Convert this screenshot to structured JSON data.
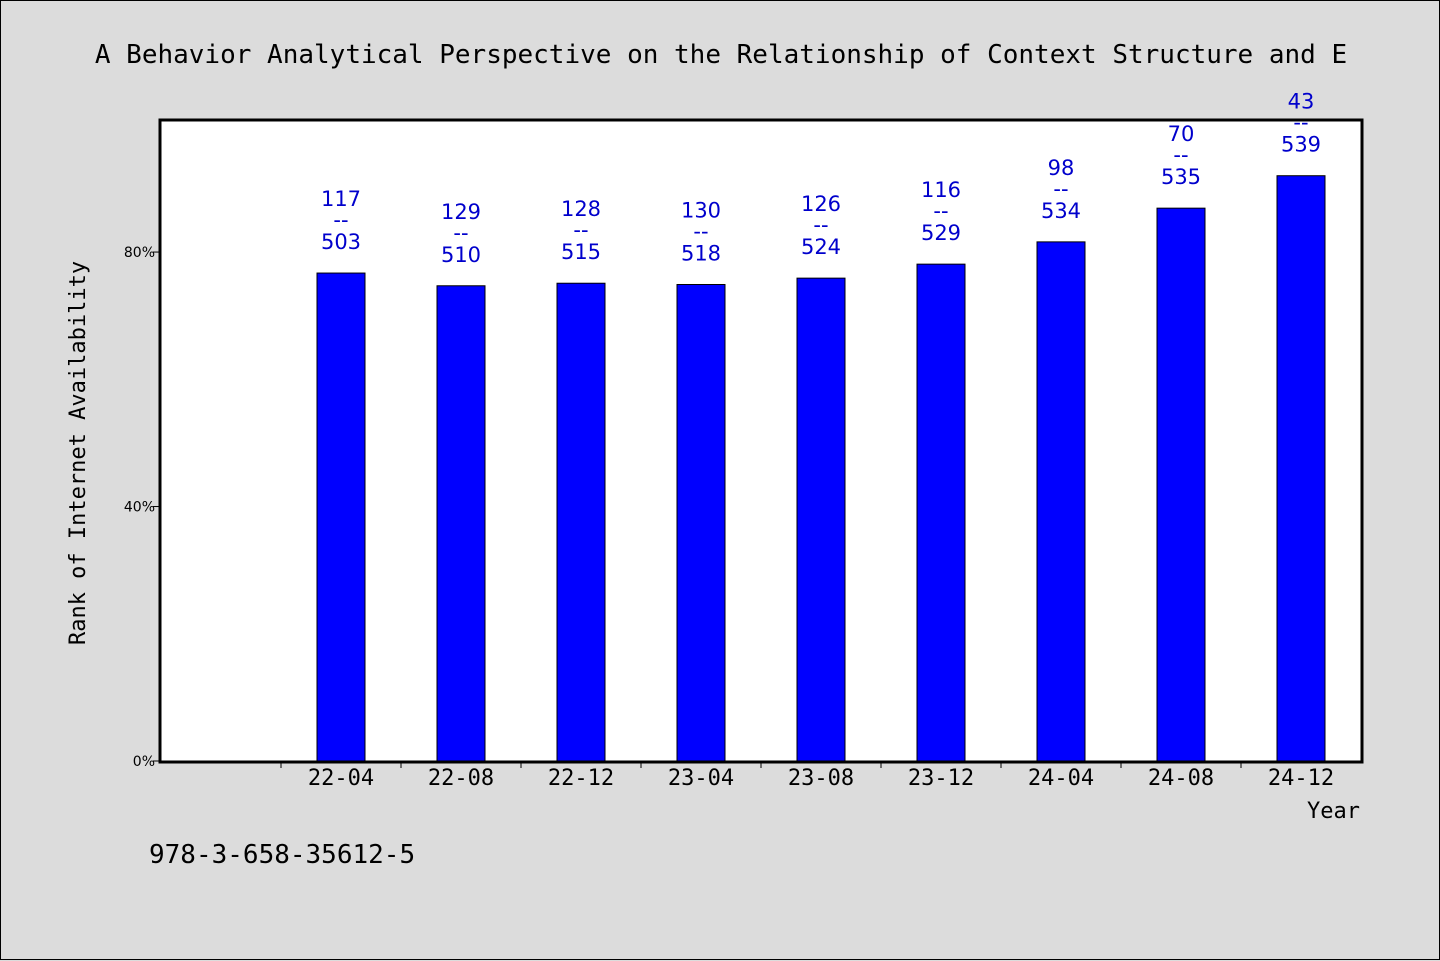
{
  "chart_data": {
    "type": "bar",
    "title": "A Behavior Analytical Perspective on the Relationship of Context Structure and E",
    "xlabel": "Year",
    "ylabel": "Rank of Internet Availability",
    "categories": [
      "22-04",
      "22-08",
      "22-12",
      "23-04",
      "23-08",
      "23-12",
      "24-04",
      "24-08",
      "24-12"
    ],
    "values": [
      76.7,
      74.7,
      75.1,
      74.9,
      75.9,
      78.1,
      81.6,
      86.9,
      92.0
    ],
    "rank": [
      117,
      129,
      128,
      130,
      126,
      116,
      98,
      70,
      43
    ],
    "total": [
      503,
      510,
      515,
      518,
      524,
      529,
      534,
      535,
      539
    ],
    "yticks": [
      "0%",
      "40%",
      "80%"
    ],
    "ytick_values": [
      0,
      40,
      80
    ],
    "ylim": [
      0,
      100.6
    ],
    "grid": false,
    "bar_color": "#0000ff",
    "label_color": "#0000cc",
    "separator": "--"
  },
  "footer_text": "978-3-658-35612-5"
}
